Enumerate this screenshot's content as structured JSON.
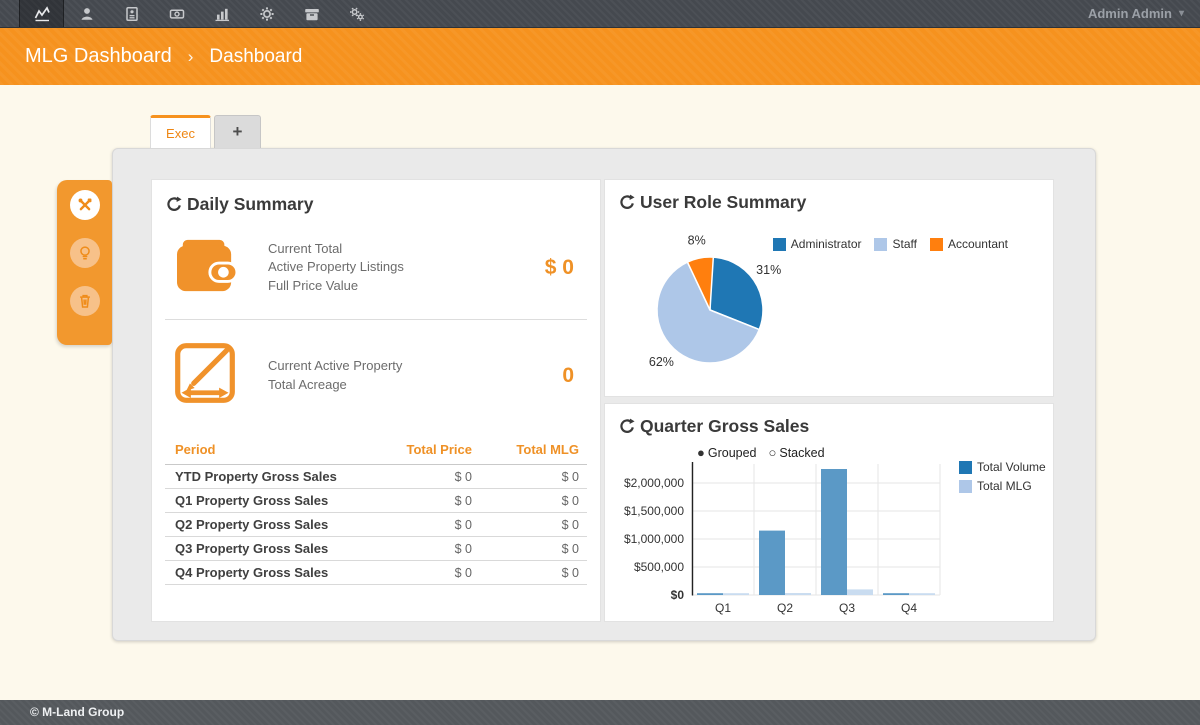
{
  "navbar": {
    "icons": [
      {
        "name": "line-chart",
        "active": true
      },
      {
        "name": "users",
        "active": false
      },
      {
        "name": "id-card",
        "active": false
      },
      {
        "name": "money",
        "active": false
      },
      {
        "name": "bar-chart",
        "active": false
      },
      {
        "name": "gear",
        "active": false
      },
      {
        "name": "archive",
        "active": false
      },
      {
        "name": "cogs",
        "active": false
      }
    ],
    "user_menu": "Admin Admin"
  },
  "breadcrumb": {
    "app_title": "MLG Dashboard",
    "separator": "›",
    "page": "Dashboard"
  },
  "tabs": {
    "active_label": "Exec",
    "add_label": "+"
  },
  "side_toolbar": {
    "icons": [
      "tools",
      "lightbulb",
      "trash"
    ]
  },
  "daily_summary": {
    "title": "Daily Summary",
    "metric_wallet": {
      "lines": [
        "Current Total",
        "Active Property Listings",
        "Full Price Value"
      ],
      "value": "$ 0"
    },
    "metric_acreage": {
      "lines": [
        "Current Active Property",
        "Total Acreage"
      ],
      "value": "0"
    },
    "table": {
      "columns": [
        "Period",
        "Total Price",
        "Total MLG"
      ],
      "rows": [
        [
          "YTD Property Gross Sales",
          "$ 0",
          "$ 0"
        ],
        [
          "Q1 Property Gross Sales",
          "$ 0",
          "$ 0"
        ],
        [
          "Q2 Property Gross Sales",
          "$ 0",
          "$ 0"
        ],
        [
          "Q3 Property Gross Sales",
          "$ 0",
          "$ 0"
        ],
        [
          "Q4 Property Gross Sales",
          "$ 0",
          "$ 0"
        ]
      ]
    }
  },
  "user_role_summary": {
    "title": "User Role Summary"
  },
  "quarter_gross_sales": {
    "title": "Quarter Gross Sales",
    "modes": [
      {
        "label": "Grouped",
        "selected": true
      },
      {
        "label": "Stacked",
        "selected": false
      }
    ]
  },
  "footer": {
    "copyright": "© M-Land Group"
  },
  "chart_data": [
    {
      "type": "pie",
      "title": "User Role Summary",
      "slices": [
        {
          "label": "Administrator",
          "pct": 31,
          "color": "#1f77b4"
        },
        {
          "label": "Staff",
          "pct": 62,
          "color": "#aec7e8"
        },
        {
          "label": "Accountant",
          "pct": 8,
          "color": "#ff7f0e"
        }
      ],
      "value_labels": [
        "31%",
        "62%",
        "8%"
      ],
      "legend_position": "top-right"
    },
    {
      "type": "bar",
      "title": "Quarter Gross Sales",
      "mode": "grouped",
      "categories": [
        "Q1",
        "Q2",
        "Q3",
        "Q4"
      ],
      "series": [
        {
          "name": "Total Volume",
          "legend_color": "#1f77b4",
          "bar_color": "#5b99c6",
          "values": [
            25000,
            1150000,
            2250000,
            25000
          ]
        },
        {
          "name": "Total MLG",
          "legend_color": "#aec7e8",
          "bar_color": "#c9dcf0",
          "values": [
            15000,
            35000,
            100000,
            15000
          ]
        }
      ],
      "y_ticks": {
        "labels": [
          "$0",
          "$500,000",
          "$1,000,000",
          "$1,500,000",
          "$2,000,000"
        ],
        "values": [
          0,
          500000,
          1000000,
          1500000,
          2000000
        ]
      },
      "ylim": [
        0,
        2270000
      ],
      "grid": true,
      "legend_position": "right"
    }
  ],
  "colors": {
    "accent_orange": "#f6921e",
    "navbar_bg": "#45494f",
    "footer_bg": "#54585c",
    "page_bg": "#fdf9ec",
    "container_bg": "#eaeaea",
    "admin_blue": "#1f77b4",
    "staff_blue": "#aec7e8",
    "accountant_orange": "#ff7f0e"
  }
}
